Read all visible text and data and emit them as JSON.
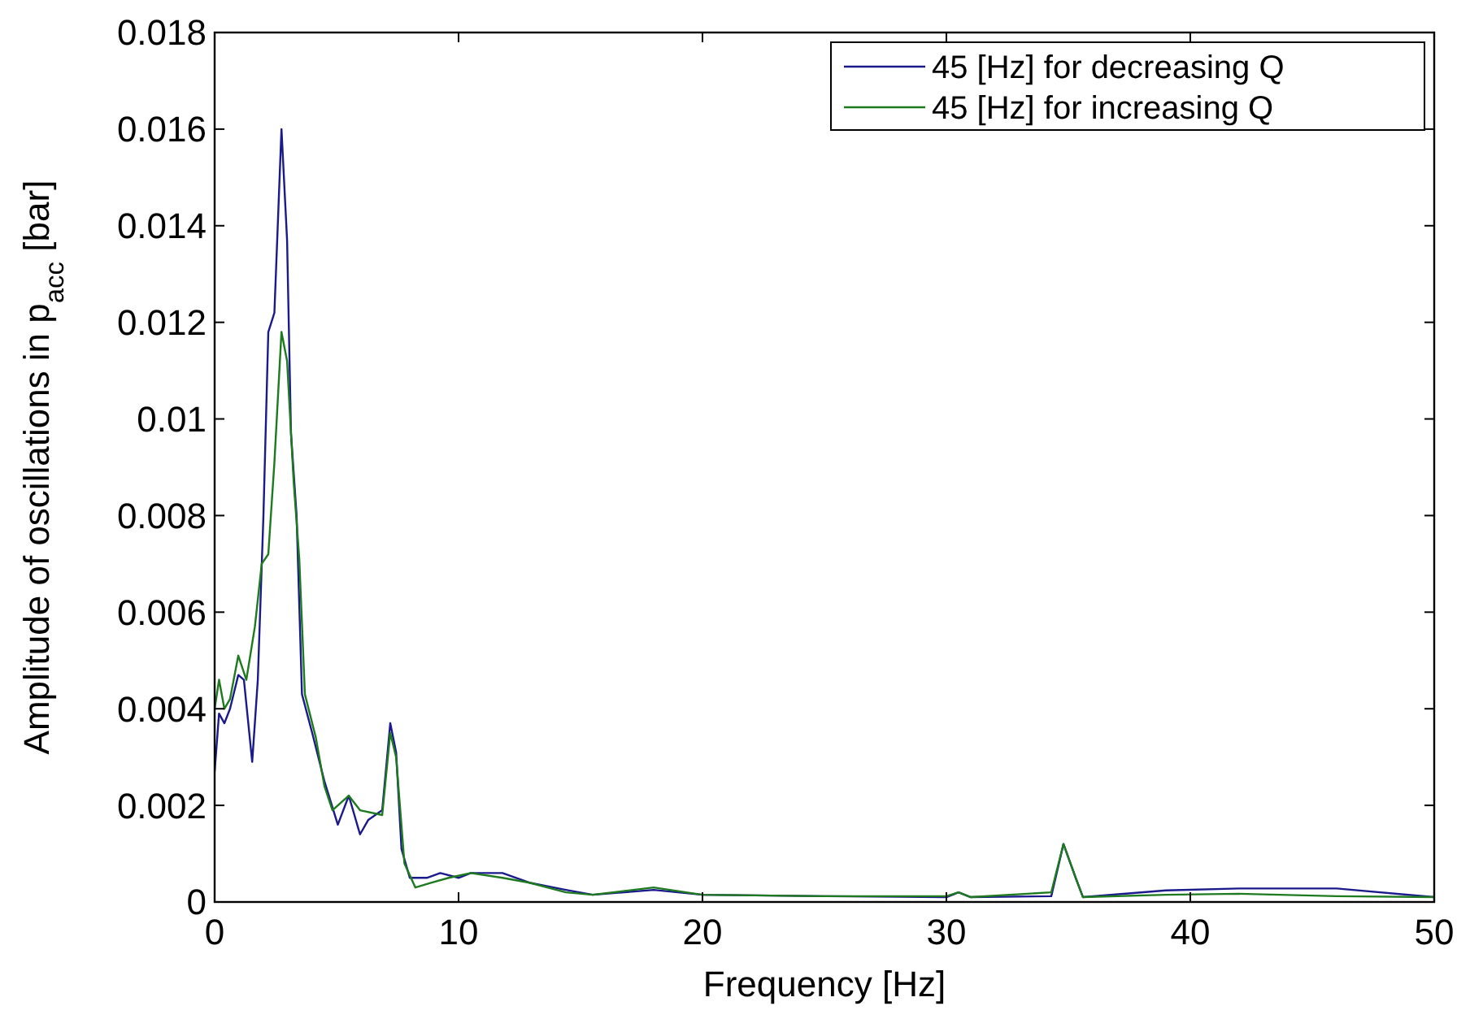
{
  "chart_data": {
    "type": "line",
    "xlabel": "Frequency [Hz]",
    "ylabel": "Amplitude of oscillations in p$_{acc}$ [bar]",
    "xlim": [
      0,
      50
    ],
    "ylim": [
      0,
      0.018
    ],
    "xticks": [
      0,
      10,
      20,
      30,
      40,
      50
    ],
    "yticks": [
      0,
      0.002,
      0.004,
      0.006,
      0.008,
      0.01,
      0.012,
      0.014,
      0.016,
      0.018
    ],
    "legend": "top right",
    "grid": false,
    "line_style": "solid",
    "series": [
      {
        "name": "45 [Hz] for decreasing Q",
        "color": "#1a1a8c",
        "x": [
          0,
          0.18,
          0.4,
          0.63,
          0.97,
          1.2,
          1.54,
          1.77,
          2.0,
          2.2,
          2.45,
          2.74,
          2.97,
          3.13,
          3.36,
          3.58,
          4.0,
          4.5,
          5.05,
          5.5,
          5.96,
          6.3,
          6.87,
          7.2,
          7.44,
          7.66,
          8.0,
          8.7,
          9.25,
          10,
          10.5,
          11.8,
          12.9,
          14.4,
          15.5,
          18,
          20,
          25,
          30,
          30.5,
          31,
          34.3,
          34.8,
          35.3,
          35.6,
          39,
          42,
          46,
          50
        ],
        "values": [
          0.0027,
          0.0039,
          0.0037,
          0.004,
          0.0047,
          0.0046,
          0.0029,
          0.0046,
          0.008,
          0.0118,
          0.0122,
          0.016,
          0.0137,
          0.0097,
          0.008,
          0.0043,
          0.0035,
          0.0025,
          0.0016,
          0.0022,
          0.0014,
          0.0017,
          0.0019,
          0.0037,
          0.0031,
          0.0011,
          0.0005,
          0.0005,
          0.0006,
          0.0005,
          0.0006,
          0.0006,
          0.0004,
          0.00025,
          0.00015,
          0.00025,
          0.00015,
          0.00012,
          0.0001,
          0.0002,
          0.0001,
          0.00012,
          0.0012,
          0.0005,
          0.0001,
          0.00024,
          0.00028,
          0.00028,
          0.0001
        ]
      },
      {
        "name": "45 [Hz] for increasing Q",
        "color": "#1e7a1e",
        "x": [
          0,
          0.18,
          0.4,
          0.63,
          0.97,
          1.3,
          1.65,
          1.93,
          2.2,
          2.45,
          2.74,
          2.97,
          3.24,
          3.47,
          3.7,
          4.15,
          4.5,
          4.83,
          5.5,
          5.96,
          6.87,
          7.2,
          7.44,
          7.78,
          8.23,
          8.9,
          9.6,
          10.5,
          11.8,
          12.9,
          14.4,
          15.5,
          18,
          20,
          25,
          30,
          30.5,
          31,
          34.3,
          34.8,
          35.3,
          35.6,
          39,
          42,
          46,
          50
        ],
        "values": [
          0.004,
          0.0046,
          0.004,
          0.0042,
          0.0051,
          0.0046,
          0.0057,
          0.007,
          0.0072,
          0.0091,
          0.0118,
          0.0112,
          0.0087,
          0.0071,
          0.0043,
          0.0034,
          0.0024,
          0.0019,
          0.0022,
          0.0019,
          0.0018,
          0.0035,
          0.003,
          0.0008,
          0.0003,
          0.0004,
          0.0005,
          0.0006,
          0.0005,
          0.0004,
          0.0002,
          0.00015,
          0.0003,
          0.00015,
          0.00012,
          0.00012,
          0.0002,
          0.0001,
          0.0002,
          0.0012,
          0.0005,
          0.0001,
          0.00015,
          0.00017,
          0.00012,
          0.0001
        ]
      }
    ]
  }
}
